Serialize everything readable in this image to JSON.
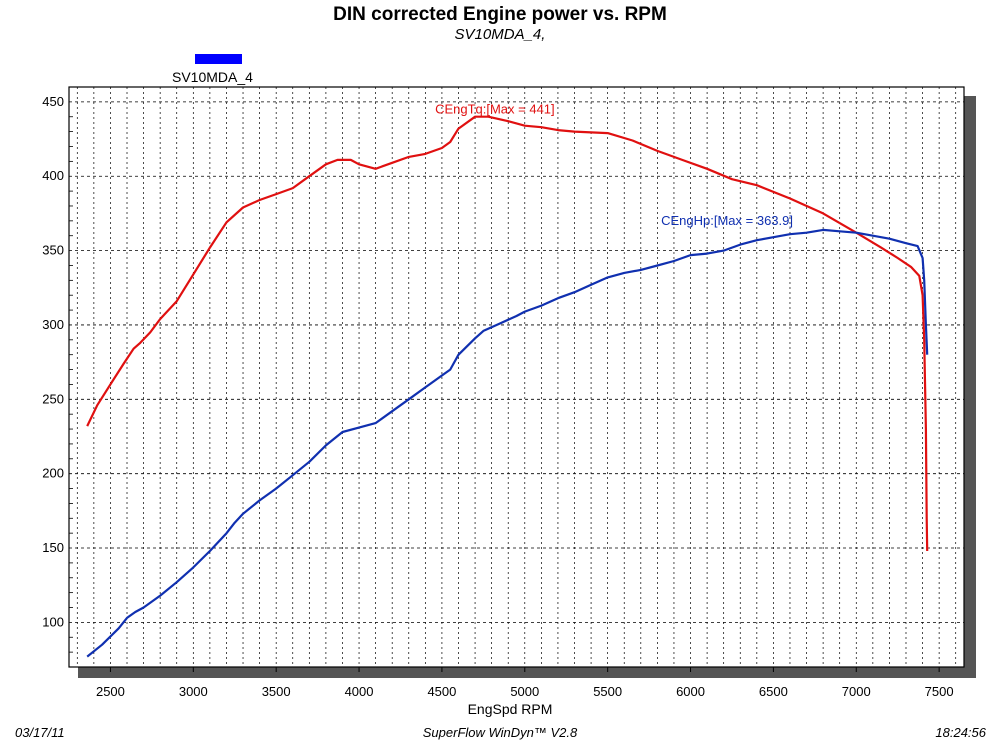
{
  "chart_data": {
    "type": "line",
    "title": "DIN corrected Engine power vs. RPM",
    "subtitle": "SV10MDA_4,",
    "xlabel": "EngSpd RPM",
    "ylabel": "",
    "xlim": [
      2250,
      7650
    ],
    "ylim": [
      70,
      460
    ],
    "xticks": [
      2500,
      3000,
      3500,
      4000,
      4500,
      5000,
      5500,
      6000,
      6500,
      7000,
      7500
    ],
    "yticks": [
      100,
      150,
      200,
      250,
      300,
      350,
      400,
      450
    ],
    "grid": true,
    "legend": {
      "position": "top-left",
      "entries": [
        {
          "label": "SV10MDA_4",
          "color": "#0000ff"
        }
      ]
    },
    "footer": {
      "date": "03/17/11",
      "software": "SuperFlow WinDyn™ V2.8",
      "time": "18:24:56"
    },
    "series": [
      {
        "name": "CEngTq",
        "color": "#e01010",
        "annotation": "CEngTq:[Max = 441]",
        "points": [
          [
            2360,
            232
          ],
          [
            2420,
            246
          ],
          [
            2500,
            260
          ],
          [
            2580,
            274
          ],
          [
            2640,
            284
          ],
          [
            2680,
            288
          ],
          [
            2740,
            295
          ],
          [
            2800,
            304
          ],
          [
            2900,
            316
          ],
          [
            3000,
            334
          ],
          [
            3100,
            352
          ],
          [
            3200,
            369
          ],
          [
            3300,
            379
          ],
          [
            3400,
            384
          ],
          [
            3500,
            388
          ],
          [
            3600,
            392
          ],
          [
            3700,
            400
          ],
          [
            3800,
            408
          ],
          [
            3870,
            411
          ],
          [
            3950,
            411
          ],
          [
            4000,
            408
          ],
          [
            4100,
            405
          ],
          [
            4200,
            409
          ],
          [
            4300,
            413
          ],
          [
            4400,
            415
          ],
          [
            4500,
            419
          ],
          [
            4550,
            423
          ],
          [
            4600,
            432
          ],
          [
            4700,
            440
          ],
          [
            4780,
            440
          ],
          [
            4900,
            437
          ],
          [
            5000,
            434
          ],
          [
            5100,
            433
          ],
          [
            5200,
            431
          ],
          [
            5300,
            430
          ],
          [
            5500,
            429
          ],
          [
            5650,
            424
          ],
          [
            5800,
            417
          ],
          [
            5950,
            411
          ],
          [
            6100,
            405
          ],
          [
            6250,
            398
          ],
          [
            6400,
            394
          ],
          [
            6600,
            385
          ],
          [
            6800,
            375
          ],
          [
            7000,
            362
          ],
          [
            7150,
            352
          ],
          [
            7250,
            345
          ],
          [
            7330,
            339
          ],
          [
            7380,
            333
          ],
          [
            7400,
            320
          ],
          [
            7410,
            290
          ],
          [
            7420,
            230
          ],
          [
            7425,
            170
          ],
          [
            7428,
            148
          ]
        ]
      },
      {
        "name": "CEngHp",
        "color": "#1030b0",
        "annotation": "CEngHp:[Max = 363.9]",
        "points": [
          [
            2360,
            77
          ],
          [
            2450,
            85
          ],
          [
            2550,
            96
          ],
          [
            2600,
            103
          ],
          [
            2650,
            107
          ],
          [
            2700,
            110
          ],
          [
            2800,
            118
          ],
          [
            2900,
            127
          ],
          [
            3000,
            137
          ],
          [
            3100,
            148
          ],
          [
            3200,
            160
          ],
          [
            3250,
            167
          ],
          [
            3300,
            173
          ],
          [
            3400,
            182
          ],
          [
            3500,
            190
          ],
          [
            3600,
            199
          ],
          [
            3700,
            208
          ],
          [
            3800,
            219
          ],
          [
            3900,
            228
          ],
          [
            4000,
            231
          ],
          [
            4100,
            234
          ],
          [
            4200,
            242
          ],
          [
            4300,
            250
          ],
          [
            4400,
            258
          ],
          [
            4500,
            266
          ],
          [
            4550,
            270
          ],
          [
            4600,
            280
          ],
          [
            4700,
            291
          ],
          [
            4750,
            296
          ],
          [
            4850,
            301
          ],
          [
            4950,
            306
          ],
          [
            5000,
            309
          ],
          [
            5100,
            313
          ],
          [
            5200,
            318
          ],
          [
            5300,
            322
          ],
          [
            5400,
            327
          ],
          [
            5500,
            332
          ],
          [
            5600,
            335
          ],
          [
            5700,
            337
          ],
          [
            5800,
            340
          ],
          [
            5900,
            343
          ],
          [
            6000,
            347
          ],
          [
            6100,
            348
          ],
          [
            6200,
            350
          ],
          [
            6300,
            354
          ],
          [
            6400,
            357
          ],
          [
            6500,
            359
          ],
          [
            6600,
            361
          ],
          [
            6700,
            362
          ],
          [
            6800,
            363.9
          ],
          [
            6900,
            363
          ],
          [
            7000,
            362
          ],
          [
            7100,
            360
          ],
          [
            7200,
            358
          ],
          [
            7300,
            355
          ],
          [
            7370,
            353
          ],
          [
            7400,
            345
          ],
          [
            7410,
            330
          ],
          [
            7420,
            300
          ],
          [
            7428,
            280
          ]
        ]
      }
    ]
  }
}
